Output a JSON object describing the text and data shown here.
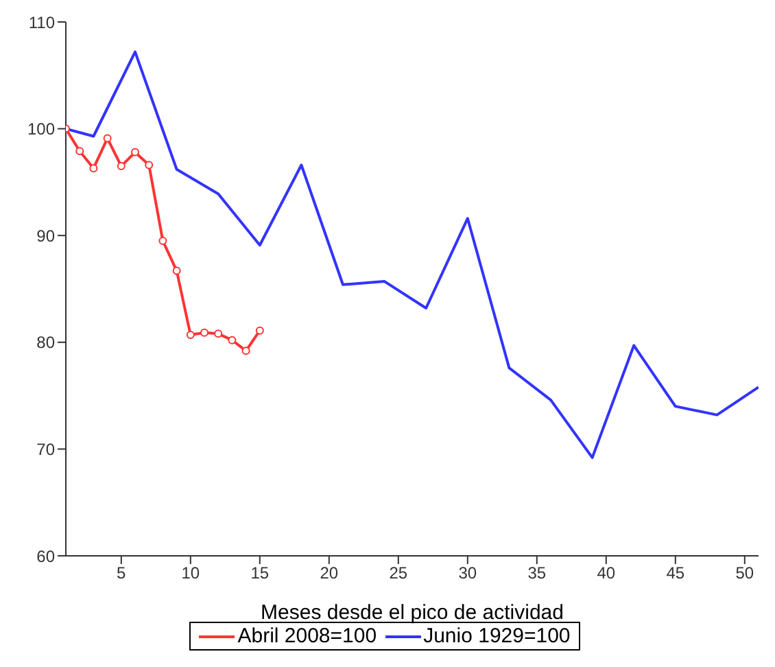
{
  "chart_data": {
    "type": "line",
    "xlabel": "Meses desde el pico de actividad",
    "xlim": [
      1,
      51
    ],
    "xticks": [
      5,
      10,
      15,
      20,
      25,
      30,
      35,
      40,
      45,
      50
    ],
    "ylim": [
      60,
      110
    ],
    "yticks": [
      60,
      70,
      80,
      90,
      100,
      110
    ],
    "grid": false,
    "legend": "bottom",
    "series": [
      {
        "name": "Junio 1929=100",
        "color": "#3333ff",
        "marker": "none",
        "x": [
          1,
          3,
          6,
          9,
          12,
          15,
          18,
          21,
          24,
          27,
          30,
          33,
          36,
          39,
          42,
          45,
          48,
          51
        ],
        "values": [
          100,
          99.3,
          107.2,
          96.2,
          93.9,
          89.1,
          96.6,
          85.4,
          85.7,
          83.2,
          91.6,
          77.6,
          74.6,
          69.2,
          79.7,
          74,
          73.2,
          75.8
        ]
      },
      {
        "name": "Abril 2008=100",
        "color": "#ff3333",
        "marker": "circle",
        "x": [
          1,
          2,
          3,
          4,
          5,
          6,
          7,
          8,
          9,
          10,
          11,
          12,
          13,
          14,
          15
        ],
        "values": [
          100,
          97.9,
          96.3,
          99.1,
          96.5,
          97.8,
          96.6,
          89.5,
          86.7,
          80.7,
          80.9,
          80.8,
          80.2,
          79.2,
          81.1
        ]
      }
    ]
  }
}
